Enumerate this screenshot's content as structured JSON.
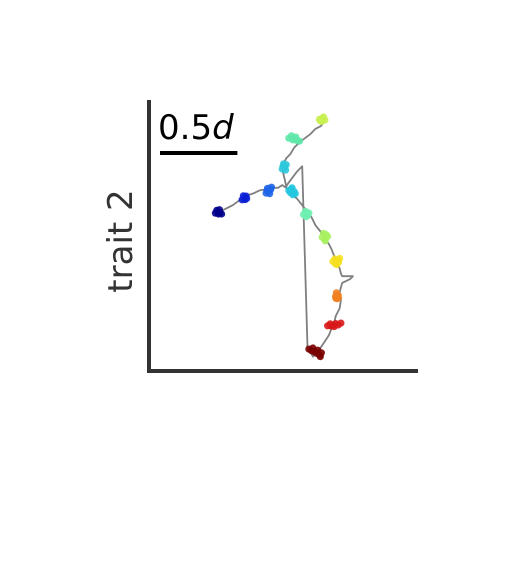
{
  "chart_data": {
    "type": "scatter",
    "title": "",
    "xlabel": "",
    "ylabel": "trait 2",
    "grid": false,
    "legend": "none",
    "xlim": [
      0,
      100
    ],
    "ylim": [
      0,
      100
    ],
    "scale_bar": {
      "number": "0.5",
      "symbol": "d",
      "length": 29
    },
    "trajectory": {
      "color": "#7f7f7f",
      "x": [
        26,
        28,
        31,
        33,
        36,
        39,
        41,
        44,
        46,
        48,
        49.5,
        51,
        52,
        53,
        55,
        57,
        59,
        60.5,
        62,
        64,
        65.5,
        67,
        68,
        69,
        70,
        71,
        71.5,
        72,
        74,
        76,
        75,
        72,
        71,
        71.5,
        71,
        69.5,
        69,
        68,
        67,
        65,
        63,
        61,
        59,
        57,
        55,
        52,
        51,
        50.5,
        50,
        49.5,
        51,
        52.5,
        54,
        56,
        58,
        60,
        62,
        64,
        66
      ],
      "y": [
        59,
        60,
        61.5,
        63,
        65,
        66,
        67,
        67.5,
        68,
        68,
        69,
        68,
        67,
        65.5,
        64,
        61.5,
        59,
        57,
        54,
        51.5,
        49,
        47,
        45,
        42.5,
        40,
        38,
        36,
        35,
        35,
        35,
        34,
        32.5,
        29,
        26,
        23,
        20,
        17.5,
        15.5,
        13,
        10,
        7,
        5,
        8.5,
        76,
        74,
        70,
        68.5,
        71,
        73,
        76,
        79,
        80.5,
        83,
        85,
        86.5,
        88,
        90,
        91,
        94
      ]
    },
    "series": [
      {
        "color": "#00008b",
        "points": [
          [
            24.5,
            58.5
          ],
          [
            25.5,
            59
          ],
          [
            26.2,
            58.6
          ],
          [
            26.8,
            58.2
          ],
          [
            25,
            59.6
          ],
          [
            26,
            59.8
          ],
          [
            25.6,
            58.2
          ]
        ]
      },
      {
        "color": "#0a1ed6",
        "points": [
          [
            34.5,
            63.5
          ],
          [
            35.5,
            64.2
          ],
          [
            36.2,
            64
          ],
          [
            35,
            65
          ],
          [
            36,
            64.9
          ],
          [
            35.6,
            63.6
          ]
        ]
      },
      {
        "color": "#1e64e8",
        "points": [
          [
            43.5,
            66
          ],
          [
            44.5,
            66.8
          ],
          [
            45.2,
            67.4
          ],
          [
            44,
            67.8
          ],
          [
            45.5,
            68.2
          ],
          [
            44.8,
            65.8
          ],
          [
            43.9,
            67
          ]
        ]
      },
      {
        "color": "#23c7de",
        "points": [
          [
            52,
            67
          ],
          [
            53,
            67.5
          ],
          [
            54,
            66.6
          ],
          [
            53.5,
            65.4
          ],
          [
            52.6,
            66.2
          ],
          [
            54.4,
            65.8
          ],
          [
            53.2,
            68
          ]
        ]
      },
      {
        "color": "#2ec8dc",
        "points": [
          [
            49.5,
            75
          ],
          [
            50.5,
            75.8
          ],
          [
            51,
            76.6
          ],
          [
            50,
            76.9
          ],
          [
            50.8,
            74.6
          ],
          [
            49.8,
            76
          ]
        ]
      },
      {
        "color": "#5ee8a8",
        "points": [
          [
            52,
            86.5
          ],
          [
            53,
            87.4
          ],
          [
            54,
            86.3
          ],
          [
            55,
            85.6
          ],
          [
            56,
            85.4
          ],
          [
            54.6,
            86.9
          ],
          [
            53.4,
            85.9
          ]
        ]
      },
      {
        "color": "#6ef0b0",
        "points": [
          [
            57.5,
            58
          ],
          [
            58.5,
            57.2
          ],
          [
            59.5,
            58.6
          ],
          [
            58.2,
            59.2
          ],
          [
            59,
            57.6
          ],
          [
            58.6,
            58.4
          ]
        ]
      },
      {
        "color": "#a8f060",
        "points": [
          [
            64.5,
            49.5
          ],
          [
            65.5,
            48.6
          ],
          [
            66.5,
            49.8
          ],
          [
            65,
            51
          ],
          [
            66,
            50.5
          ],
          [
            65.6,
            48.2
          ]
        ]
      },
      {
        "color": "#c8f050",
        "points": [
          [
            63.5,
            93.5
          ],
          [
            64.5,
            93.9
          ],
          [
            65.5,
            93.3
          ],
          [
            63.8,
            93
          ],
          [
            65,
            94.4
          ],
          [
            64.4,
            92.8
          ]
        ]
      },
      {
        "color": "#f5e020",
        "points": [
          [
            68.5,
            40.5
          ],
          [
            69.5,
            39.6
          ],
          [
            70.5,
            40.9
          ],
          [
            71,
            41.6
          ],
          [
            69.2,
            41.4
          ],
          [
            70,
            39.4
          ],
          [
            70.6,
            40.2
          ]
        ]
      },
      {
        "color": "#f08020",
        "points": [
          [
            69.5,
            27.5
          ],
          [
            70.5,
            27.9
          ],
          [
            70,
            26.6
          ],
          [
            69.8,
            28.8
          ],
          [
            70.6,
            26.9
          ],
          [
            69.6,
            26.8
          ]
        ]
      },
      {
        "color": "#d81818",
        "points": [
          [
            66.5,
            16.5
          ],
          [
            67.5,
            17.2
          ],
          [
            68.5,
            16.6
          ],
          [
            69.5,
            17.3
          ],
          [
            70.5,
            16.8
          ],
          [
            71.5,
            17.5
          ],
          [
            69,
            16.2
          ],
          [
            67.8,
            16.4
          ]
        ]
      },
      {
        "color": "#7a0000",
        "points": [
          [
            59.5,
            7.8
          ],
          [
            60.5,
            7.2
          ],
          [
            61.5,
            6.8
          ],
          [
            62.5,
            6.2
          ],
          [
            63.5,
            5.6
          ],
          [
            64.2,
            6.4
          ],
          [
            61,
            8.2
          ],
          [
            62.8,
            7.4
          ],
          [
            63.8,
            5
          ]
        ]
      }
    ]
  }
}
